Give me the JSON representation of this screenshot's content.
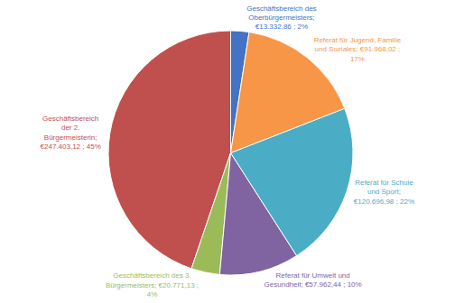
{
  "chart_data": {
    "type": "pie",
    "categories": [
      "Geschäftsbereich des\nOberbürgermeisters;\n€13.332,86 ; 2%",
      "Geschäftsbereich\nder 2.\nBürgermeisterin;\n€247.403,12 ; 45%",
      "Geschäftsbereich des 3.\nBürgermeisters; €20.771,13 ;\n4%",
      "Referat für Umwelt und\nGesundheit; €57.962,44 ; 10%",
      "Referat für Schule\nund Sport;\n€120.696,98 ; 22%",
      "Referat für Jugend, Familie\nund Soziales; €91.968,02 ;\n17%"
    ],
    "values": [
      13332.86,
      247403.12,
      20771.13,
      57962.44,
      120696.98,
      91968.02
    ],
    "colors": [
      "#4472c4",
      "#c0504d",
      "#9bbb59",
      "#8064a2",
      "#4bacc6",
      "#f79646"
    ],
    "data_labels": true
  }
}
